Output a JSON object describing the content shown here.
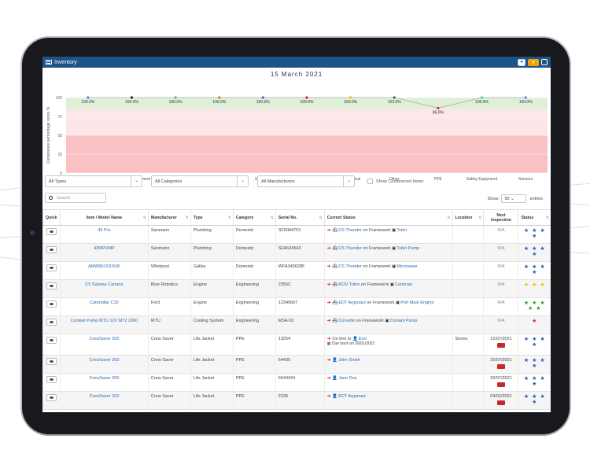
{
  "app": {
    "title": "Inventory"
  },
  "chart_data": {
    "type": "line",
    "title": "15 March 2021",
    "ylabel": "Compliance percentage score %",
    "ylim": [
      0,
      100
    ],
    "yticks": [
      0,
      25,
      50,
      75,
      100
    ],
    "categories": [
      "Bridge Equipment",
      "Computer Equipment",
      "Consumables",
      "Domestic",
      "Electrical",
      "Engineering",
      "Mechanical",
      "Other",
      "PPE",
      "Safety Equipment",
      "Sensors"
    ],
    "values": [
      100.0,
      100.0,
      100.0,
      100.0,
      100.0,
      100.0,
      100.0,
      100.0,
      86.0,
      100.0,
      100.0
    ],
    "value_labels": [
      "100.0%",
      "100.0%",
      "100.0%",
      "100.0%",
      "100.0%",
      "100.0%",
      "100.0%",
      "100.0%",
      "86.0%",
      "100.0%",
      "100.0%"
    ],
    "point_colors": [
      "#4a8fd4",
      "#222222",
      "#5cc45c",
      "#e07b00",
      "#6a5acd",
      "#d9262c",
      "#f0c000",
      "#1f7a7a",
      "#d9262c",
      "#4ac0d8",
      "#4a8fd4"
    ],
    "bands": {
      "red_below": 50,
      "pink_below": 85,
      "green_above": 85
    },
    "colors": {
      "red": "#f9c1c4",
      "pink": "#fde6e7",
      "green": "#dff0d8",
      "line": "#b0b0b0"
    }
  },
  "filters": {
    "types": "All Types",
    "categories": "All Categories",
    "manufacturers": "All Manufacturers",
    "condemned_label": "Show Condemned Items"
  },
  "search": {
    "placeholder": "Search"
  },
  "paging": {
    "show_label": "Show",
    "value": "50",
    "entries_label": "entries"
  },
  "table": {
    "headers": [
      "Quick",
      "Item / Model Name",
      "Manufacturer",
      "Type",
      "Category",
      "Serial No.",
      "Current Status",
      "Location",
      "Next Inspection",
      "Status"
    ],
    "rows": [
      {
        "name": "43 Pro",
        "manufacturer": "Sanmarin",
        "type": "Plumbing",
        "category": "Domestic",
        "serial": "SF9084753",
        "status_main": "CS Thunder",
        "status_mid": "on Framework",
        "status_end": "Toilet",
        "status_line2": "",
        "location": "",
        "inspection": "N/A",
        "inspection_overdue": false,
        "stars_top": "★ ★ ★",
        "stars_bottom": "★",
        "star_color": "blue"
      },
      {
        "name": "43MPUMP",
        "manufacturer": "Sanmarin",
        "type": "Plumbing",
        "category": "Domestic",
        "serial": "SFA634543",
        "status_main": "CS Thunder",
        "status_mid": "on Framework",
        "status_end": "Toilet Pump",
        "status_line2": "",
        "location": "",
        "inspection": "N/A",
        "inspection_overdue": false,
        "stars_top": "★ ★ ★",
        "stars_bottom": "★",
        "star_color": "blue"
      },
      {
        "name": "AMW961S/IXUK",
        "manufacturer": "Whirlpool",
        "type": "Galley",
        "category": "Domestic",
        "serial": "WFA3490285",
        "status_main": "CS Thunder",
        "status_mid": "on Framework",
        "status_end": "Microwave",
        "status_line2": "",
        "location": "",
        "inspection": "N/A",
        "inspection_overdue": false,
        "stars_top": "★ ★ ★",
        "stars_bottom": "★",
        "star_color": "blue"
      },
      {
        "name": "C5 Subsea Camera",
        "manufacturer": "Blue Robotics",
        "type": "Engine",
        "category": "Engineering",
        "serial": "2355C",
        "status_main": "ROV Triton",
        "status_mid": "on Framework",
        "status_end": "Cameras",
        "status_line2": "",
        "location": "",
        "inspection": "N/A",
        "inspection_overdue": false,
        "stars_top": "★ ★ ★",
        "stars_bottom": "",
        "star_color": "yellow"
      },
      {
        "name": "Caterpillar C32",
        "manufacturer": "Ford",
        "type": "Engine",
        "category": "Engineering",
        "serial": "12345667",
        "status_main": "EDT Argonaut",
        "status_mid": "on Framework",
        "status_end": "Port Main Engine",
        "status_line2": "",
        "location": "",
        "inspection": "N/A",
        "inspection_overdue": false,
        "stars_top": "★ ★ ★",
        "stars_bottom": "★ ★",
        "star_color": "green"
      },
      {
        "name": "Coolant Pump MTU 12V M72 2000",
        "manufacturer": "MTU",
        "type": "Cooling System",
        "category": "Engineering",
        "serial": "MSA 03",
        "status_main": "Corvette",
        "status_mid": "on Framework",
        "status_end": "Coolant Pump",
        "status_line2": "",
        "location": "",
        "inspection": "N/A",
        "inspection_overdue": false,
        "stars_top": "★",
        "stars_bottom": "",
        "star_color": "red"
      },
      {
        "name": "CrewSaver 200",
        "manufacturer": "Crew Saver",
        "type": "Life Jacket",
        "category": "PPE",
        "serial": "13254",
        "status_main": "Eon",
        "status_mid": "On hire to",
        "status_end": "",
        "status_line2": "Due back on 26/01/2021",
        "location": "Stores",
        "inspection": "12/07/2021",
        "inspection_overdue": true,
        "stars_top": "★ ★ ★",
        "stars_bottom": "★",
        "star_color": "blue"
      },
      {
        "name": "CrewSaver 200",
        "manufacturer": "Crew Saver",
        "type": "Life Jacket",
        "category": "PPE",
        "serial": "54435",
        "status_main": "John Smith",
        "status_mid": "",
        "status_end": "",
        "status_line2": "",
        "location": "",
        "inspection": "20/07/2021",
        "inspection_overdue": true,
        "stars_top": "★ ★ ★",
        "stars_bottom": "★",
        "star_color": "blue"
      },
      {
        "name": "CrewSaver 200",
        "manufacturer": "Crew Saver",
        "type": "Life Jacket",
        "category": "PPE",
        "serial": "6644434",
        "status_main": "Jane Doe",
        "status_mid": "",
        "status_end": "",
        "status_line2": "",
        "location": "",
        "inspection": "20/07/2021",
        "inspection_overdue": true,
        "stars_top": "★ ★ ★",
        "stars_bottom": "★",
        "star_color": "blue"
      },
      {
        "name": "CrewSaver 200",
        "manufacturer": "Crew Saver",
        "type": "Life Jacket",
        "category": "PPE",
        "serial": "2235",
        "status_main": "EDT Argonaut",
        "status_mid": "",
        "status_end": "",
        "status_line2": "",
        "location": "",
        "inspection": "04/02/2021",
        "inspection_overdue": true,
        "stars_top": "★ ★ ★",
        "stars_bottom": "★",
        "star_color": "blue"
      }
    ]
  }
}
